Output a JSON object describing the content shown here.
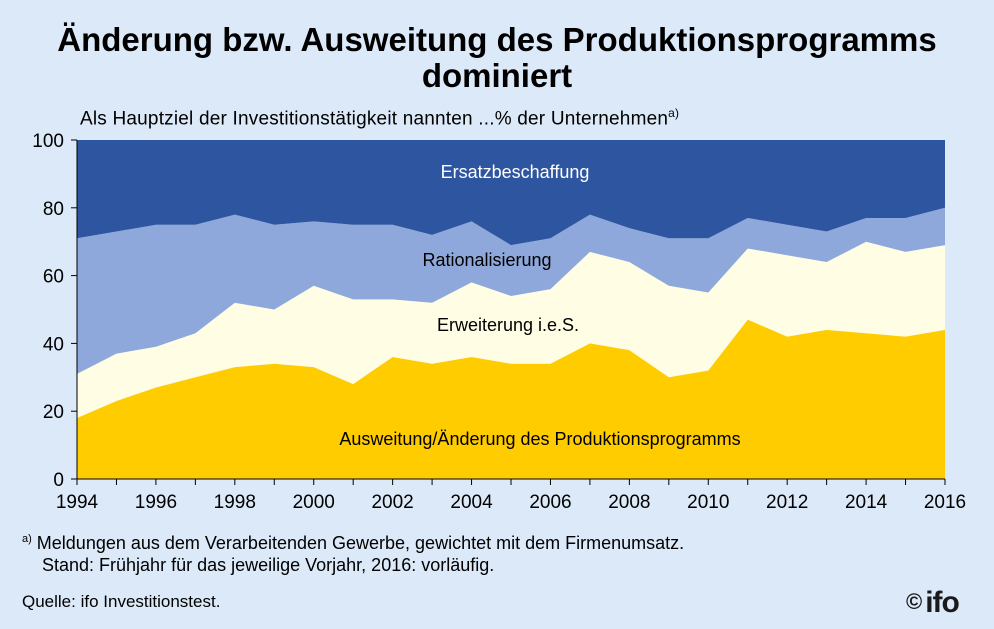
{
  "title_line1": "Änderung bzw. Ausweitung des Produktionsprogramms",
  "title_line2": "dominiert",
  "subtitle": "Als Hauptziel der Investitionstätigkeit nannten ...% der Unternehmen",
  "subtitle_note": "a)",
  "footnote_marker": "a)",
  "footnote_line1": "Meldungen aus dem Verarbeitenden Gewerbe, gewichtet mit dem Firmenumsatz.",
  "footnote_line2": "Stand: Frühjahr für das jeweilige Vorjahr, 2016: vorläufig.",
  "source": "Quelle: ifo Investitionstest.",
  "logo_copyright": "©",
  "logo_text": "ifo",
  "chart_data": {
    "type": "area",
    "stacked": true,
    "x": [
      1994,
      1995,
      1996,
      1997,
      1998,
      1999,
      2000,
      2001,
      2002,
      2003,
      2004,
      2005,
      2006,
      2007,
      2008,
      2009,
      2010,
      2011,
      2012,
      2013,
      2014,
      2015,
      2016
    ],
    "xticks": [
      "1994",
      "1996",
      "1998",
      "2000",
      "2002",
      "2004",
      "2006",
      "2008",
      "2010",
      "2012",
      "2014",
      "2016"
    ],
    "yticks": [
      "0",
      "20",
      "40",
      "60",
      "80",
      "100"
    ],
    "ylim": [
      0,
      100
    ],
    "series": [
      {
        "name": "Ausweitung/Änderung des Produktionsprogramms",
        "color": "#ffcc00",
        "values": [
          18,
          23,
          27,
          30,
          33,
          34,
          33,
          28,
          36,
          34,
          36,
          34,
          34,
          40,
          38,
          30,
          32,
          47,
          42,
          44,
          43,
          42,
          44
        ]
      },
      {
        "name": "Erweiterung i.e.S.",
        "color": "#fffde4",
        "values": [
          13,
          14,
          12,
          13,
          19,
          16,
          24,
          25,
          17,
          18,
          22,
          20,
          22,
          27,
          26,
          27,
          23,
          21,
          24,
          20,
          27,
          25,
          25
        ]
      },
      {
        "name": "Rationalisierung",
        "color": "#8fa8db",
        "values": [
          40,
          36,
          36,
          32,
          26,
          25,
          19,
          22,
          22,
          20,
          18,
          15,
          15,
          11,
          10,
          14,
          16,
          9,
          9,
          9,
          7,
          10,
          11
        ]
      },
      {
        "name": "Ersatzbeschaffung",
        "color": "#2e55a0",
        "values": [
          29,
          27,
          25,
          25,
          22,
          25,
          24,
          25,
          25,
          28,
          24,
          31,
          29,
          22,
          26,
          29,
          29,
          23,
          25,
          27,
          23,
          23,
          20
        ]
      }
    ]
  }
}
